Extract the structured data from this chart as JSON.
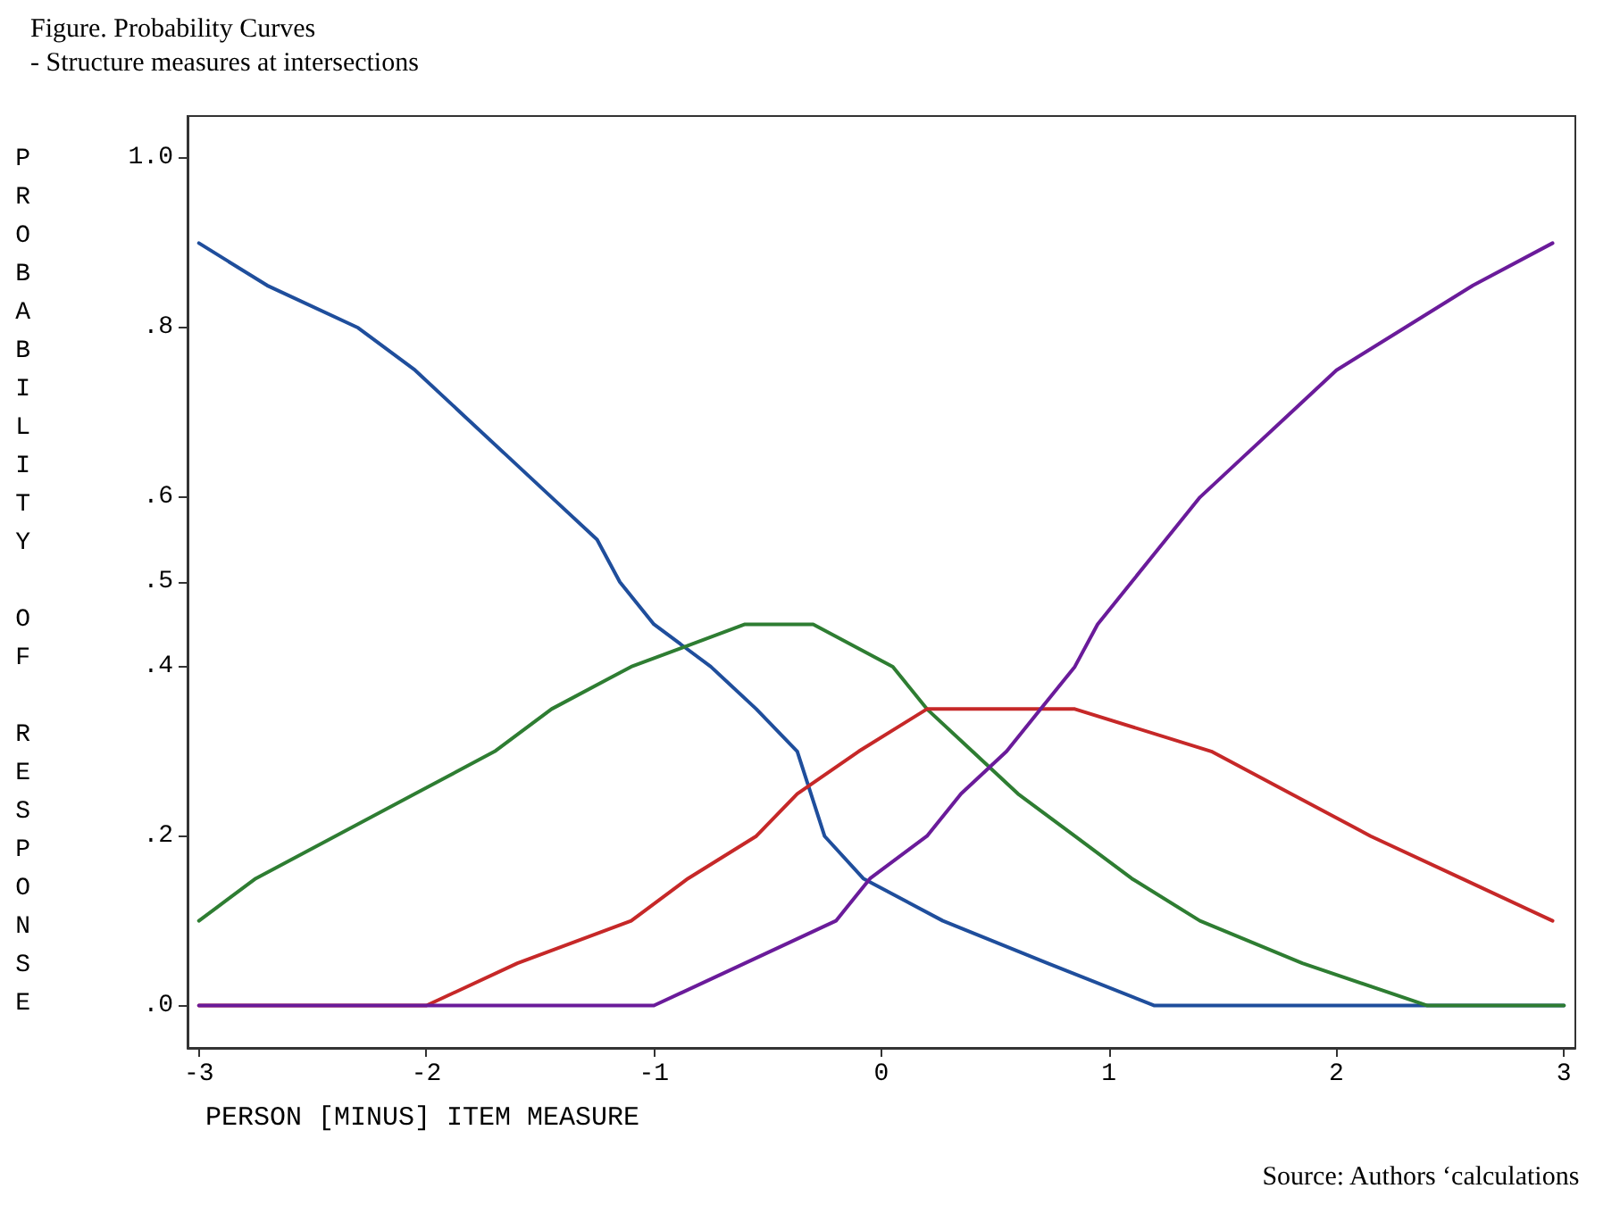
{
  "chart_data": {
    "type": "line",
    "title": "Figure. Probability Curves",
    "subtitle": "- Structure measures at intersections",
    "xlabel": "PERSON [MINUS] ITEM MEASURE",
    "ylabel": "PROBABILITY OF RESPONSE",
    "annotations": [
      "Source: Authors ‘calculations"
    ],
    "xlim": [
      -3.05,
      3.05
    ],
    "xticks": [
      -3,
      -2,
      -1,
      0,
      1,
      2,
      3
    ],
    "ylim": [
      -0.05,
      1.05
    ],
    "yticks": [
      {
        "value": 0,
        "label": ".0"
      },
      {
        "value": 0.2,
        "label": ".2"
      },
      {
        "value": 0.4,
        "label": ".4"
      },
      {
        "value": 0.5,
        "label": ".5"
      },
      {
        "value": 0.6,
        "label": ".6"
      },
      {
        "value": 0.8,
        "label": ".8"
      },
      {
        "value": 1,
        "label": "1.0"
      }
    ],
    "grid": false,
    "marker": "none",
    "line_style": "solid",
    "series": [
      {
        "color": "#1f4e9c",
        "x": [
          -3,
          -2.7,
          -2.3,
          -2.05,
          -1.85,
          -1.65,
          -1.45,
          -1.25,
          -1.15,
          -1.0,
          -0.75,
          -0.55,
          -0.37,
          -0.25,
          -0.08,
          0.27,
          0.73,
          1.2,
          3
        ],
        "values": [
          0.9,
          0.85,
          0.8,
          0.75,
          0.7,
          0.65,
          0.6,
          0.55,
          0.5,
          0.45,
          0.4,
          0.35,
          0.3,
          0.2,
          0.15,
          0.1,
          0.05,
          0,
          0
        ]
      },
      {
        "color": "#2e7d32",
        "x": [
          -3,
          -2.75,
          -2.4,
          -2.05,
          -1.7,
          -1.45,
          -1.1,
          -0.6,
          -0.3,
          0.05,
          0.2,
          0.4,
          0.6,
          0.85,
          1.1,
          1.4,
          1.85,
          2.4,
          3
        ],
        "values": [
          0.1,
          0.15,
          0.2,
          0.25,
          0.3,
          0.35,
          0.4,
          0.45,
          0.45,
          0.4,
          0.35,
          0.3,
          0.25,
          0.2,
          0.15,
          0.1,
          0.05,
          0,
          0
        ]
      },
      {
        "color": "#c62828",
        "x": [
          -3,
          -2.0,
          -1.6,
          -1.1,
          -0.85,
          -0.55,
          -0.37,
          -0.1,
          0.2,
          0.5,
          0.85,
          1.45,
          1.8,
          2.15,
          2.55,
          2.95
        ],
        "values": [
          0,
          0,
          0.05,
          0.1,
          0.15,
          0.2,
          0.25,
          0.3,
          0.35,
          0.35,
          0.35,
          0.3,
          0.25,
          0.2,
          0.15,
          0.1
        ]
      },
      {
        "color": "#6a1b9a",
        "x": [
          -3,
          -1.0,
          -0.6,
          -0.2,
          -0.05,
          0.2,
          0.35,
          0.55,
          0.7,
          0.85,
          0.95,
          1.1,
          1.25,
          1.4,
          1.6,
          1.8,
          2.0,
          2.3,
          2.6,
          2.95
        ],
        "values": [
          0,
          0,
          0.05,
          0.1,
          0.15,
          0.2,
          0.25,
          0.3,
          0.35,
          0.4,
          0.45,
          0.5,
          0.55,
          0.6,
          0.65,
          0.7,
          0.75,
          0.8,
          0.85,
          0.9
        ]
      }
    ]
  }
}
